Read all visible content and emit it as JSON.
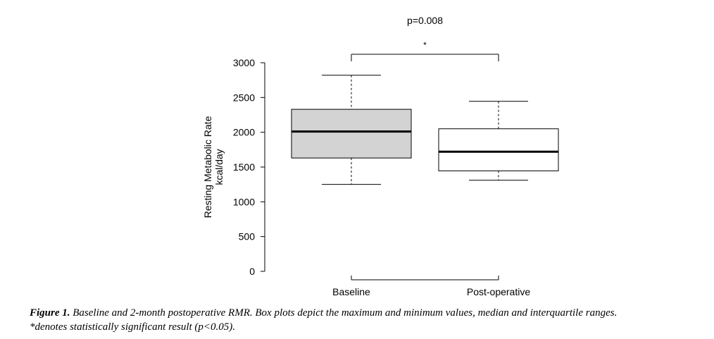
{
  "chart_data": {
    "type": "box",
    "categories": [
      "Baseline",
      "Post-operative"
    ],
    "ylabel_line1": "Resting Metabolic Rate",
    "ylabel_line2": "kcal/day",
    "ylim": [
      0,
      3000
    ],
    "yticks": [
      0,
      500,
      1000,
      1500,
      2000,
      2500,
      3000
    ],
    "ytick_labels": [
      "0",
      "500",
      "1000",
      "1500",
      "2000",
      "2500",
      "3000"
    ],
    "boxes": [
      {
        "name": "Baseline",
        "min": 1250,
        "q1": 1630,
        "median": 2010,
        "q3": 2330,
        "max": 2820,
        "fill": "#d3d3d3"
      },
      {
        "name": "Post-operative",
        "min": 1310,
        "q1": 1445,
        "median": 1720,
        "q3": 2050,
        "max": 2445,
        "fill": "#ffffff"
      }
    ],
    "significance": {
      "p_label": "p=0.008",
      "marker": "*"
    }
  },
  "caption": {
    "label": "Figure 1.",
    "line1": " Baseline and 2-month postoperative RMR. Box plots depict the maximum and minimum values, median and interquartile ranges.",
    "line2": "*denotes statistically significant result (p<0.05)."
  }
}
